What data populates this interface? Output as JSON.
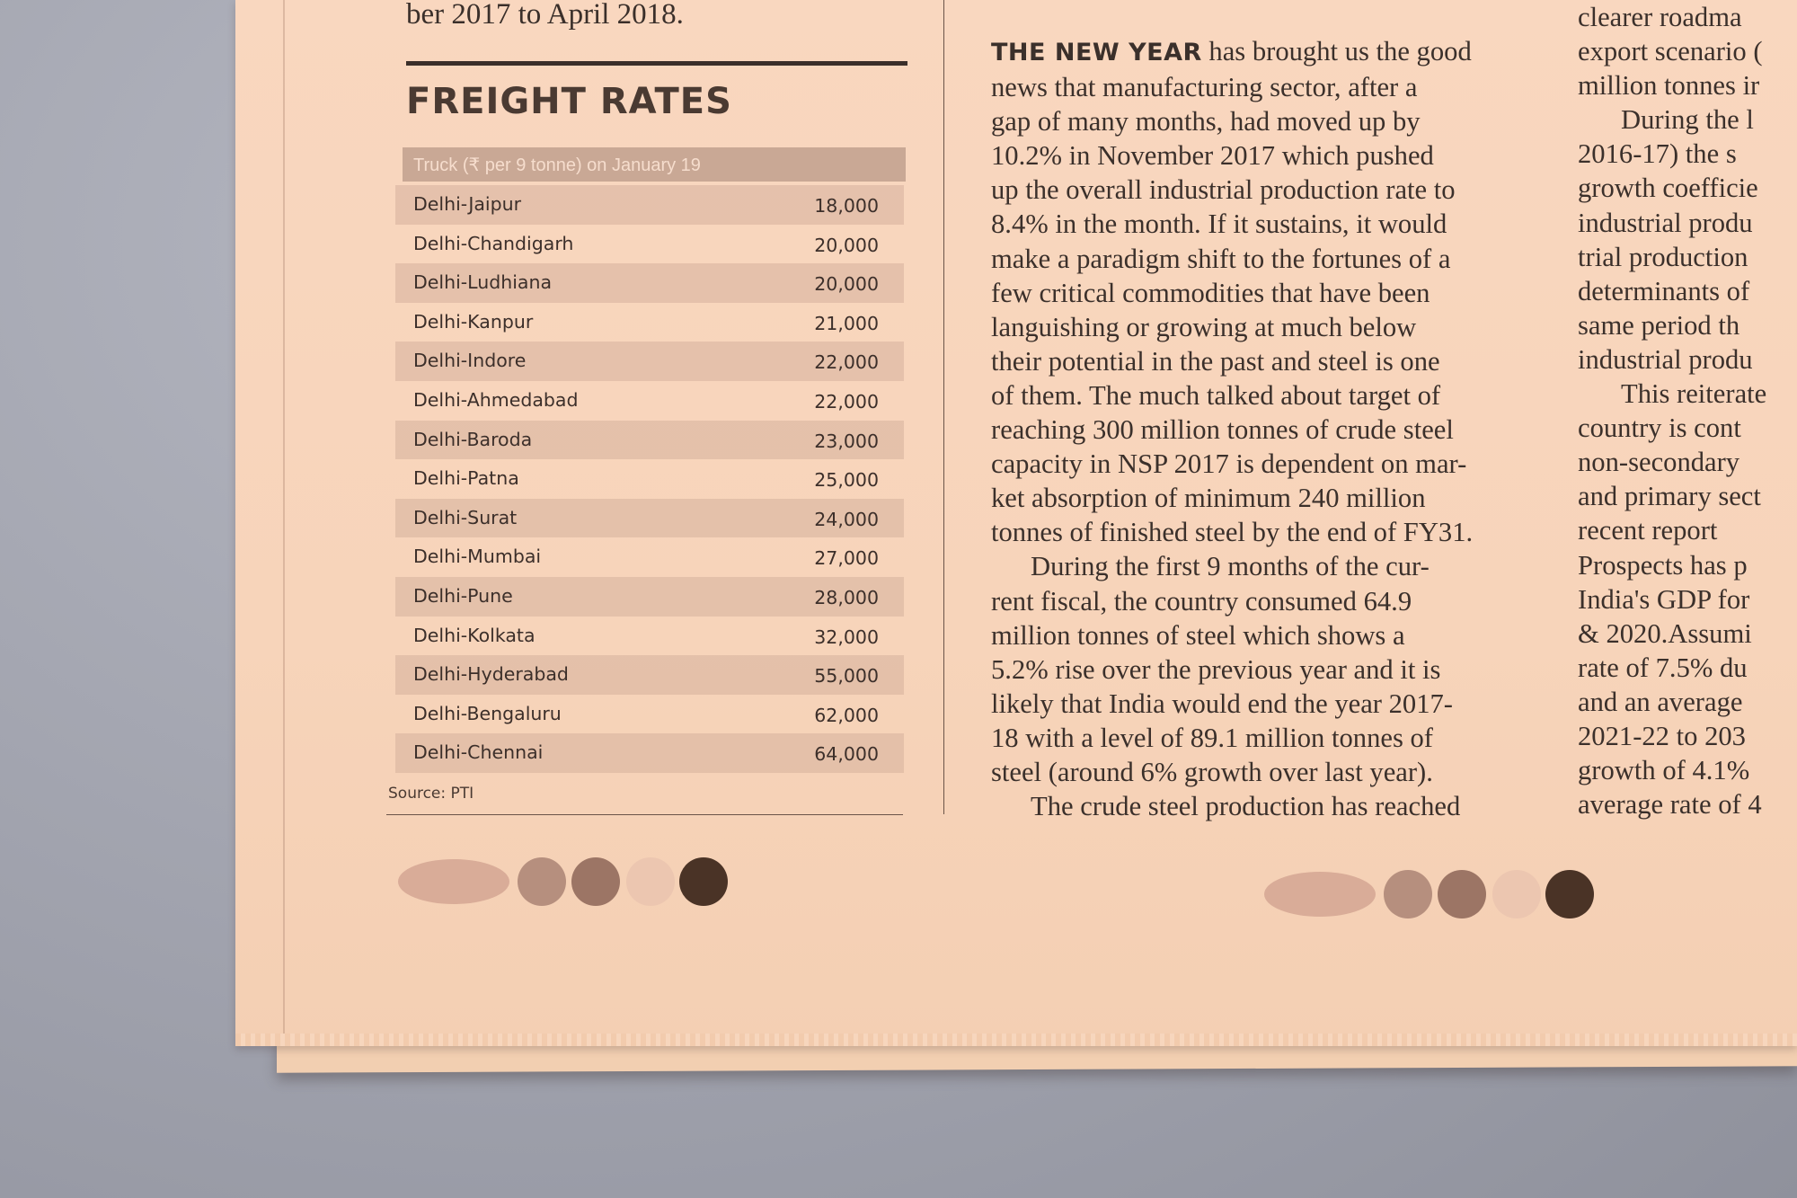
{
  "caption_fragment": "ber 2017 to April 2018.",
  "freight_rates": {
    "title": "FREIGHT RATES",
    "header": "Truck (₹ per 9 tonne) on January 19",
    "rows": [
      {
        "route": "Delhi-Jaipur",
        "rate": "18,000"
      },
      {
        "route": "Delhi-Chandigarh",
        "rate": "20,000"
      },
      {
        "route": "Delhi-Ludhiana",
        "rate": "20,000"
      },
      {
        "route": "Delhi-Kanpur",
        "rate": "21,000"
      },
      {
        "route": "Delhi-Indore",
        "rate": "22,000"
      },
      {
        "route": "Delhi-Ahmedabad",
        "rate": "22,000"
      },
      {
        "route": "Delhi-Baroda",
        "rate": "23,000"
      },
      {
        "route": "Delhi-Patna",
        "rate": "25,000"
      },
      {
        "route": "Delhi-Surat",
        "rate": "24,000"
      },
      {
        "route": "Delhi-Mumbai",
        "rate": "27,000"
      },
      {
        "route": "Delhi-Pune",
        "rate": "28,000"
      },
      {
        "route": "Delhi-Kolkata",
        "rate": "32,000"
      },
      {
        "route": "Delhi-Hyderabad",
        "rate": "55,000"
      },
      {
        "route": "Delhi-Bengaluru",
        "rate": "62,000"
      },
      {
        "route": "Delhi-Chennai",
        "rate": "64,000"
      }
    ],
    "source": "Source: PTI"
  },
  "article": {
    "lead_in": "THE NEW YEAR",
    "first_line_rest": "has brought us the good",
    "lines": [
      "news that manufacturing sector, after a",
      "gap of many months, had moved up by",
      "10.2% in November 2017 which pushed",
      "up the overall industrial production rate to",
      "8.4% in the month. If it sustains, it would",
      "make a paradigm shift to the fortunes of a",
      "few critical commodities that have been",
      "languishing or growing at much below",
      "their potential in the past and steel is one",
      "of them. The much talked about target of",
      "reaching 300 million tonnes of crude steel",
      "capacity in NSP 2017 is dependent on mar-",
      "ket absorption of minimum 240 million",
      "tonnes of finished steel by the end of FY31.",
      "During the first 9 months of the cur-",
      "rent fiscal, the country consumed 64.9",
      "million tonnes of steel which shows a",
      "5.2% rise over the previous year and it is",
      "likely that India would end the year 2017-",
      "18 with a level of 89.1 million tonnes of",
      "steel (around 6% growth over last year).",
      "The crude steel production has reached"
    ]
  },
  "right_column": {
    "lines": [
      "clearer roadma",
      "export scenario (",
      "million tonnes ir",
      "During the l",
      "2016-17) the s",
      "growth coefficie",
      "industrial produ",
      "trial production",
      "determinants of",
      "same period th",
      "industrial produ",
      "This reiterate",
      "country is cont",
      "non-secondary",
      "and primary sect",
      "recent report",
      "Prospects has p",
      "India's GDP for",
      "& 2020.Assumi",
      "rate of 7.5% du",
      "and an average",
      "2021-22 to 203",
      "growth of 4.1%",
      "average rate of 4"
    ]
  },
  "colors": {
    "paper": "#f7d4ba",
    "ink": "#3b302b",
    "row_shade": "#d6b09c",
    "header_band": "#c9a895",
    "background": "#a3a5b0"
  }
}
